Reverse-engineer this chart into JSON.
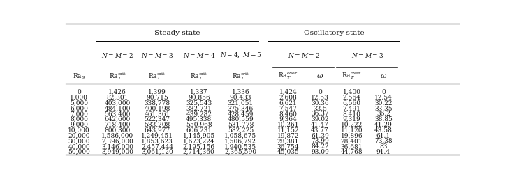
{
  "steady_state_header": "Steady state",
  "oscillatory_header": "Oscillatory state",
  "steady_subheaders": [
    "N=M=2",
    "N=M=3",
    "N=M=4",
    "N=4, M=5"
  ],
  "osc_subheaders": [
    "N=M=2",
    "N=M=3"
  ],
  "rows": [
    [
      0,
      1426,
      1399,
      1337,
      1336,
      1424,
      0,
      1400,
      0
    ],
    [
      1000,
      82301,
      90715,
      90856,
      90433,
      2608,
      12.53,
      2564,
      12.54
    ],
    [
      5000,
      403000,
      338778,
      325543,
      321051,
      6621,
      30.36,
      6560,
      30.22
    ],
    [
      6000,
      484100,
      400198,
      382721,
      375346,
      7547,
      33.5,
      7491,
      33.35
    ],
    [
      7000,
      563400,
      461361,
      439282,
      428459,
      8460,
      36.37,
      8410,
      36.2
    ],
    [
      8000,
      642600,
      522347,
      495338,
      480559,
      9364,
      39.02,
      9319,
      38.85
    ],
    [
      9000,
      718400,
      583208,
      550968,
      531778,
      10261,
      41.47,
      10222,
      41.29
    ],
    [
      10000,
      800300,
      643977,
      606231,
      582225,
      11152,
      43.77,
      11120,
      43.58
    ],
    [
      20000,
      1586000,
      1249451,
      1145905,
      1058675,
      19872,
      61.39,
      19896,
      61.1
    ],
    [
      30000,
      2396000,
      1853623,
      1673224,
      1506792,
      28381,
      73.99,
      28401,
      73.38
    ],
    [
      40000,
      3146000,
      2457444,
      2195156,
      1940535,
      36754,
      84.22,
      36681,
      83
    ],
    [
      50000,
      3949000,
      3061120,
      2714360,
      2365590,
      45035,
      93.09,
      44768,
      91.4
    ]
  ],
  "bg_color": "#ffffff",
  "text_color": "#1a1a1a",
  "font_size": 6.5,
  "header_font_size": 7.5
}
